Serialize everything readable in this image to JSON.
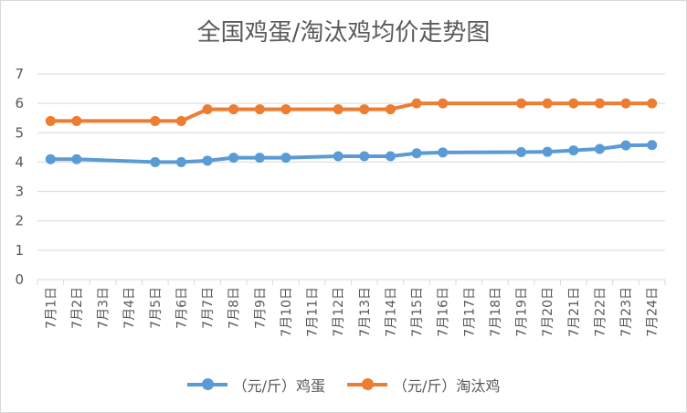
{
  "chart_data": {
    "type": "line",
    "title": "全国鸡蛋/淘汰鸡均价走势图",
    "categories": [
      "7月1日",
      "7月2日",
      "7月3日",
      "7月4日",
      "7月5日",
      "7月6日",
      "7月7日",
      "7月8日",
      "7月9日",
      "7月10日",
      "7月11日",
      "7月12日",
      "7月13日",
      "7月14日",
      "7月15日",
      "7月16日",
      "7月17日",
      "7月18日",
      "7月19日",
      "7月20日",
      "7月21日",
      "7月22日",
      "7月23日",
      "7月24日"
    ],
    "ylim": [
      0,
      7
    ],
    "yticks": [
      "0",
      "1",
      "2",
      "3",
      "4",
      "5",
      "6",
      "7"
    ],
    "grid": true,
    "legend_position": "bottom",
    "series": [
      {
        "name": "（元/斤）鸡蛋",
        "color": "#5B9BD5",
        "values": [
          4.1,
          4.1,
          null,
          null,
          4.0,
          4.0,
          4.05,
          4.15,
          4.15,
          4.15,
          null,
          4.2,
          4.2,
          4.2,
          4.3,
          4.33,
          null,
          null,
          4.34,
          4.35,
          4.4,
          4.45,
          4.57,
          4.58
        ]
      },
      {
        "name": "（元/斤）淘汰鸡",
        "color": "#ED7D31",
        "values": [
          5.4,
          5.4,
          null,
          null,
          5.4,
          5.4,
          5.8,
          5.8,
          5.8,
          5.8,
          null,
          5.8,
          5.8,
          5.8,
          6.0,
          6.0,
          null,
          null,
          6.0,
          6.0,
          6.0,
          6.0,
          6.0,
          6.0
        ]
      }
    ]
  }
}
